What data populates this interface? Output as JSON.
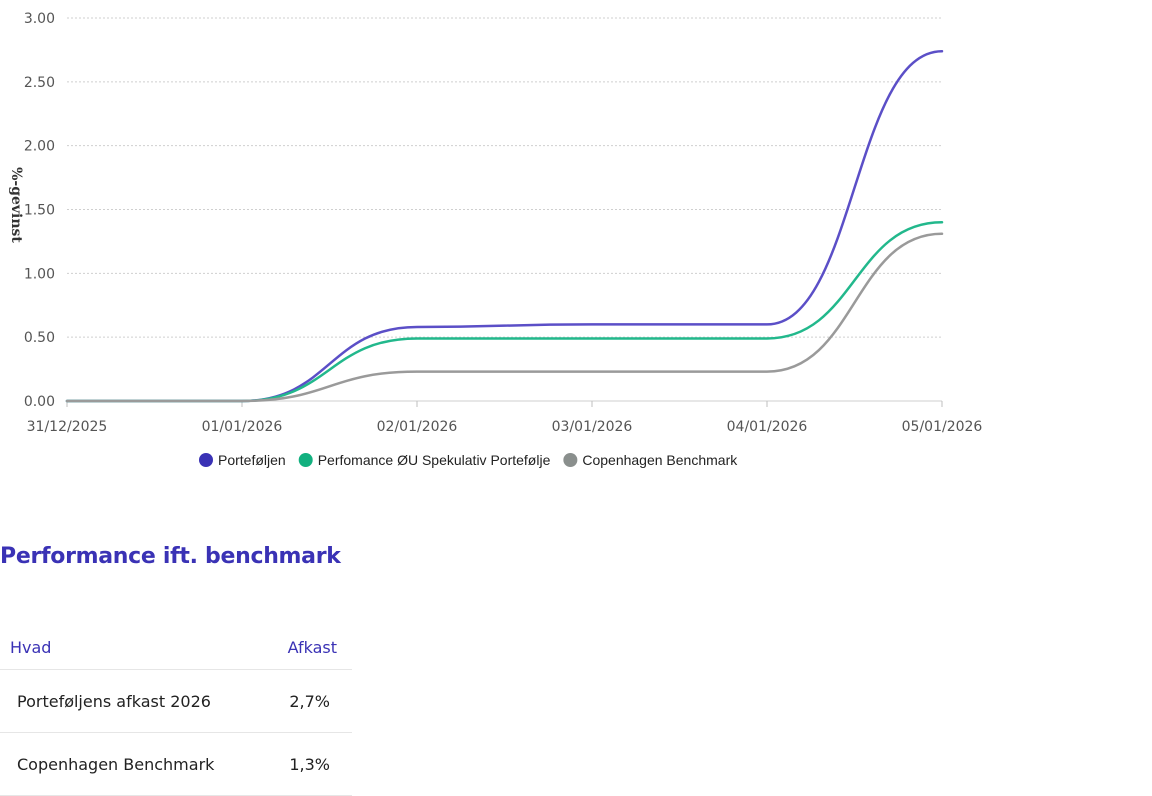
{
  "chart_data": {
    "type": "line",
    "ylabel": "%-gevinst",
    "xlabel": "",
    "title": "",
    "x": [
      "31/12/2025",
      "01/01/2026",
      "02/01/2026",
      "03/01/2026",
      "04/01/2026",
      "05/01/2026"
    ],
    "ylim": [
      0,
      3
    ],
    "yticks": [
      "0.00",
      "0.50",
      "1.00",
      "1.50",
      "2.00",
      "2.50",
      "3.00"
    ],
    "grid": true,
    "legend_position": "bottom",
    "series": [
      {
        "name": "Porteføljen",
        "color": "#5b4fc7",
        "marker_color": "#3a32b5",
        "values": [
          0,
          0,
          0.58,
          0.6,
          0.6,
          2.74
        ]
      },
      {
        "name": "Perfomance ØU Spekulativ Portefølje",
        "color": "#22b88c",
        "marker_color": "#12b07f",
        "values": [
          0,
          0,
          0.49,
          0.49,
          0.49,
          1.4
        ]
      },
      {
        "name": "Copenhagen Benchmark",
        "color": "#9a9a9a",
        "marker_color": "#8a8f8d",
        "values": [
          0,
          0,
          0.23,
          0.23,
          0.23,
          1.31
        ]
      }
    ]
  },
  "section": {
    "title": "Performance ift. benchmark"
  },
  "table": {
    "headers": {
      "what": "Hvad",
      "return": "Afkast"
    },
    "rows": [
      {
        "what": "Porteføljens afkast 2026",
        "return": "2,7%"
      },
      {
        "what": "Copenhagen Benchmark",
        "return": "1,3%"
      }
    ]
  }
}
